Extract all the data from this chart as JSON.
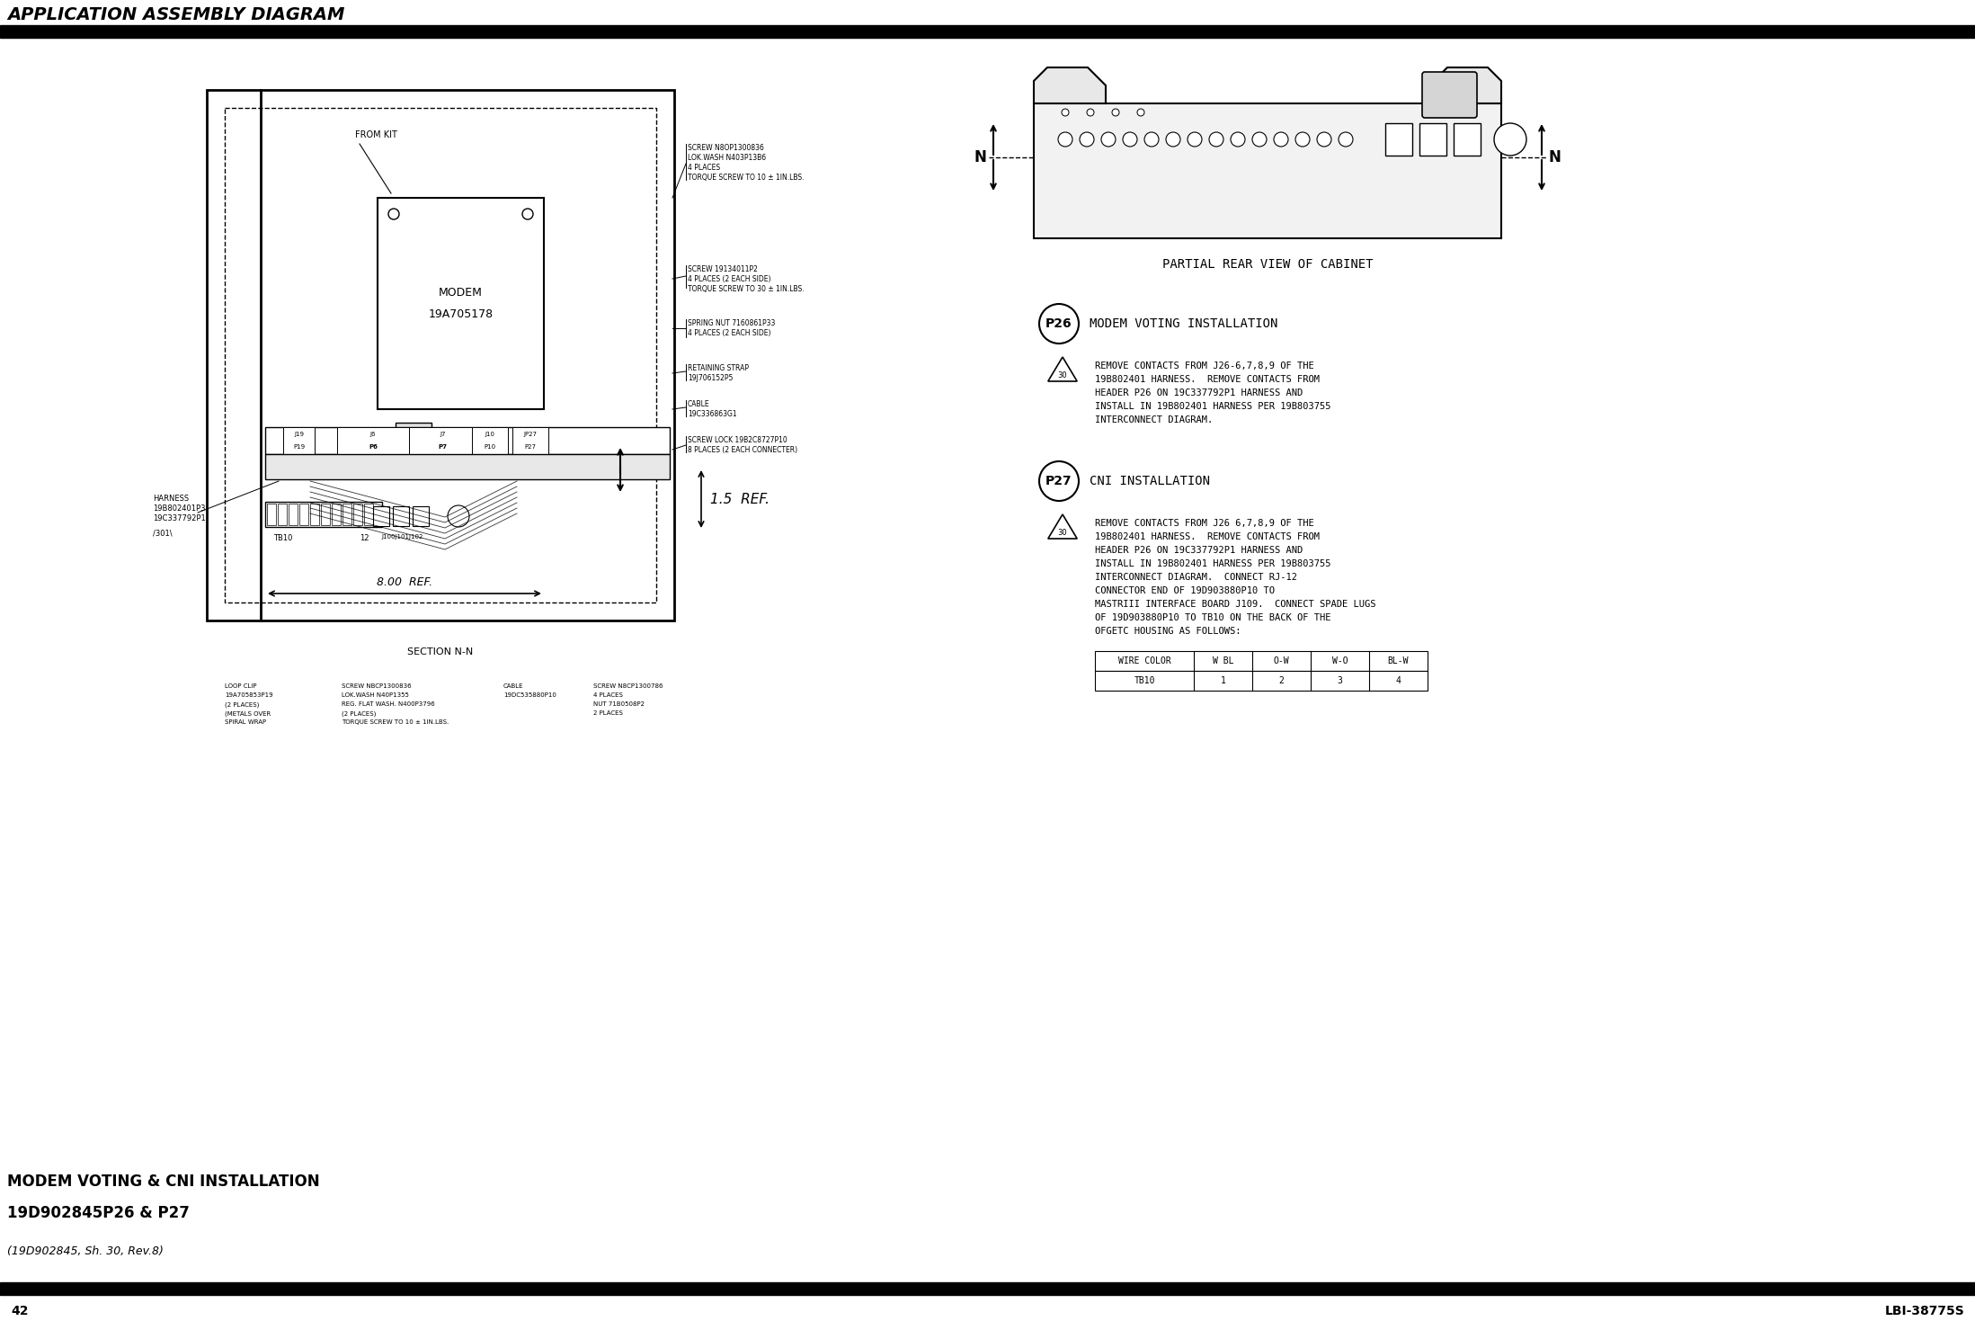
{
  "page_title": "APPLICATION ASSEMBLY DIAGRAM",
  "bg_color": "#ffffff",
  "bar_color": "#000000",
  "bottom_left_bold_line1": "MODEM VOTING & CNI INSTALLATION",
  "bottom_left_bold_line2": "19D902845P26 & P27",
  "bottom_left_italic": "(19D902845, Sh. 30, Rev.8)",
  "bottom_page_num": "42",
  "bottom_right_text": "LBI-38775S",
  "partial_rear_view_label": "PARTIAL REAR VIEW OF CABINET",
  "section_nn_label": "SECTION N-N",
  "p26_circle_label": "P26",
  "p26_title": "MODEM VOTING INSTALLATION",
  "p26_note_num": "30",
  "p26_texts": [
    "REMOVE CONTACTS FROM J26-6,7,8,9 OF THE",
    "19B802401 HARNESS.  REMOVE CONTACTS FROM",
    "HEADER P26 ON 19C337792P1 HARNESS AND",
    "INSTALL IN 19B802401 HARNESS PER 19B803755",
    "INTERCONNECT DIAGRAM."
  ],
  "p27_circle_label": "P27",
  "p27_title": "CNI INSTALLATION",
  "p27_note_num": "30",
  "p27_texts": [
    "REMOVE CONTACTS FROM J26 6,7,8,9 OF THE",
    "19B802401 HARNESS.  REMOVE CONTACTS FROM",
    "HEADER P26 ON 19C337792P1 HARNESS AND",
    "INSTALL IN 19B802401 HARNESS PER 19B803755",
    "INTERCONNECT DIAGRAM.  CONNECT RJ-12",
    "CONNECTOR END OF 19D903880P10 TO",
    "MASTRIII INTERFACE BOARD J109.  CONNECT SPADE LUGS",
    "OF 19D903880P10 TO TB10 ON THE BACK OF THE",
    "OFGETC HOUSING AS FOLLOWS:"
  ],
  "table_headers": [
    "WIRE COLOR",
    "W BL",
    "O-W",
    "W-O",
    "BL-W"
  ],
  "table_row1": [
    "TB10",
    "1",
    "2",
    "3",
    "4"
  ],
  "ref_800": "8.00  REF.",
  "ref_15": "1.5  REF.",
  "modem_label1": "MODEM",
  "modem_label2": "19A705178",
  "n_label": "N",
  "from_kit_label": "FROM KIT",
  "screw1_lines": [
    "SCREW N8OP1300836",
    "LOK.WASH N403P13B6",
    "4 PLACES",
    "TORQUE SCREW TO 10 ± 1IN.LBS."
  ],
  "screw2_lines": [
    "SCREW 19134011P2",
    "4 PLACES (2 EACH SIDE)",
    "TORQUE SCREW TO 30 ± 1IN.LBS."
  ],
  "spring_lines": [
    "SPRING NUT 7160861P33",
    "4 PLACES (2 EACH SIDE)"
  ],
  "retaining_lines": [
    "RETAINING STRAP",
    "19J706152P5"
  ],
  "cable1_lines": [
    "CABLE",
    "19C336863G1"
  ],
  "screwlock_lines": [
    "SCREW LOCK 19B2C8727P10",
    "8 PLACES (2 EACH CONNECTER)"
  ],
  "tb10_label": "TB10",
  "j100_label": "J100J101J102",
  "harness_lines": [
    "HARNESS",
    "19B802401P3",
    "19C337792P1"
  ],
  "harness_note": "/301\\",
  "loop_clip_lines": [
    "LOOP CLIP",
    "19A705853P19",
    "(2 PLACES)",
    "(METALS OVER",
    "SPIRAL WRAP"
  ],
  "screw3_lines": [
    "SCREW NBCP1300836",
    "LOK.WASH N40P1355",
    "REG. FLAT WASH. N400P3796",
    "(2 PLACES)",
    "TORQUE SCREW TO 10 ± 1IN.LBS."
  ],
  "cable2_lines": [
    "CABLE",
    "19DC535880P10"
  ],
  "screw4_lines": [
    "SCREW N8CP1300786",
    "4 PLACES",
    "NUT 71B0508P2",
    "2 PLACES"
  ]
}
